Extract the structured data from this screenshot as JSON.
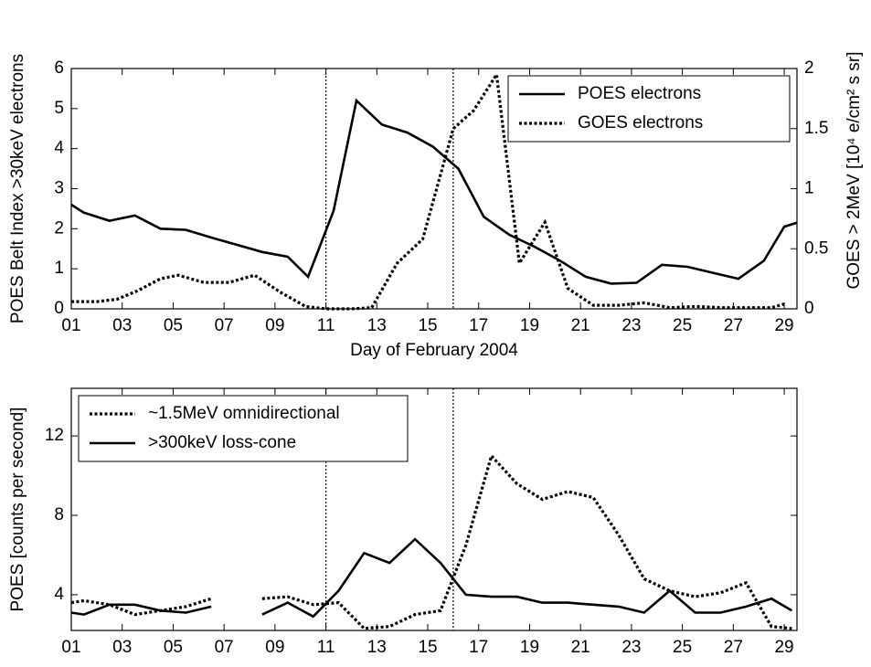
{
  "chart_data": [
    {
      "type": "line",
      "y_label": "POES Belt Index >30keV electrons",
      "y2_label": "GOES > 2MeV [10⁴ e/cm² s sr]",
      "x_label": "Day of February 2004",
      "xlim": [
        1,
        29.5
      ],
      "xticks": [
        {
          "value": 1,
          "label": "01"
        },
        {
          "value": 3,
          "label": "03"
        },
        {
          "value": 5,
          "label": "05"
        },
        {
          "value": 7,
          "label": "07"
        },
        {
          "value": 9,
          "label": "09"
        },
        {
          "value": 11,
          "label": "11"
        },
        {
          "value": 13,
          "label": "13"
        },
        {
          "value": 15,
          "label": "15"
        },
        {
          "value": 17,
          "label": "17"
        },
        {
          "value": 19,
          "label": "19"
        },
        {
          "value": 21,
          "label": "21"
        },
        {
          "value": 23,
          "label": "23"
        },
        {
          "value": 25,
          "label": "25"
        },
        {
          "value": 27,
          "label": "27"
        },
        {
          "value": 29,
          "label": "29"
        }
      ],
      "ylim": [
        0,
        6
      ],
      "yticks": [
        0,
        1,
        2,
        3,
        4,
        5,
        6
      ],
      "y2lim": [
        0,
        2
      ],
      "y2ticks": [
        0,
        0.5,
        1,
        1.5,
        2
      ],
      "vlines": [
        11,
        16
      ],
      "legend": "upper right",
      "series": [
        {
          "name": "POES electrons",
          "color": "#000000",
          "style": "solid",
          "x": [
            1,
            1.5,
            2.5,
            3.5,
            4.5,
            5.5,
            6.5,
            7.5,
            8.5,
            9.5,
            10.3,
            11.3,
            12.2,
            13.2,
            14.2,
            15.2,
            16.2,
            17.2,
            18.2,
            19.2,
            20.2,
            21.2,
            22.2,
            23.2,
            24.2,
            25.2,
            26.2,
            27.2,
            28.2,
            29,
            29.5
          ],
          "values": [
            2.6,
            2.4,
            2.2,
            2.33,
            2.0,
            1.97,
            1.78,
            1.6,
            1.42,
            1.3,
            0.8,
            2.45,
            5.2,
            4.6,
            4.4,
            4.05,
            3.5,
            2.3,
            1.85,
            1.55,
            1.2,
            0.8,
            0.63,
            0.65,
            1.1,
            1.05,
            0.9,
            0.75,
            1.2,
            2.05,
            2.15
          ]
        },
        {
          "name": "GOES electrons",
          "color": "#000000",
          "style": "dotted",
          "axis": "y2",
          "x": [
            1,
            2,
            2.8,
            3.6,
            4.5,
            5.2,
            6.2,
            7.2,
            8.2,
            9.2,
            10.2,
            11,
            12,
            12.8,
            13.8,
            14.8,
            16,
            16.8,
            17.7,
            18.6,
            19.6,
            20.5,
            21.5,
            22.5,
            23.5,
            24.5,
            25.5,
            26.5,
            27.5,
            28.5,
            29
          ],
          "values": [
            0.06,
            0.06,
            0.08,
            0.15,
            0.25,
            0.28,
            0.22,
            0.22,
            0.28,
            0.14,
            0.02,
            0.0,
            0.0,
            0.01,
            0.38,
            0.58,
            1.5,
            1.65,
            1.95,
            0.38,
            0.72,
            0.17,
            0.03,
            0.03,
            0.05,
            0.01,
            0.02,
            0.01,
            0.01,
            0.01,
            0.04
          ]
        }
      ]
    },
    {
      "type": "line",
      "y_label": "POES [counts per second]",
      "xlim": [
        1,
        29.5
      ],
      "xticks": [
        {
          "value": 1,
          "label": "01"
        },
        {
          "value": 3,
          "label": "03"
        },
        {
          "value": 5,
          "label": "05"
        },
        {
          "value": 7,
          "label": "07"
        },
        {
          "value": 9,
          "label": "09"
        },
        {
          "value": 11,
          "label": "11"
        },
        {
          "value": 13,
          "label": "13"
        },
        {
          "value": 15,
          "label": "15"
        },
        {
          "value": 17,
          "label": "17"
        },
        {
          "value": 19,
          "label": "19"
        },
        {
          "value": 21,
          "label": "21"
        },
        {
          "value": 23,
          "label": "23"
        },
        {
          "value": 25,
          "label": "25"
        },
        {
          "value": 27,
          "label": "27"
        },
        {
          "value": 29,
          "label": "29"
        }
      ],
      "ylim": [
        2.2,
        14.4
      ],
      "yticks": [
        4,
        8,
        12
      ],
      "vlines": [
        11,
        16
      ],
      "legend": "upper left",
      "x": [
        1,
        1.5,
        2.5,
        3.5,
        4.5,
        5.5,
        6.5,
        7.5,
        8.5,
        9.5,
        10.5,
        11.5,
        12.5,
        13.5,
        14.5,
        15.5,
        16.5,
        17.5,
        18.5,
        19.5,
        20.5,
        21.5,
        22.5,
        23.5,
        24.5,
        25.5,
        26.5,
        27.5,
        28.5,
        29.3
      ],
      "series": [
        {
          "name": "~1.5MeV omnidirectional",
          "color": "#000000",
          "style": "dotted",
          "values": [
            3.6,
            3.7,
            3.5,
            3.0,
            3.2,
            3.4,
            3.8,
            null,
            3.8,
            3.9,
            3.5,
            3.6,
            2.3,
            2.4,
            3.0,
            3.2,
            6.5,
            11.0,
            9.6,
            8.8,
            9.2,
            8.9,
            7.0,
            4.8,
            4.2,
            3.9,
            4.1,
            4.6,
            2.4,
            2.3
          ]
        },
        {
          "name": ">300keV loss-cone",
          "color": "#000000",
          "style": "solid",
          "values": [
            3.1,
            3.0,
            3.5,
            3.5,
            3.2,
            3.1,
            3.4,
            null,
            3.0,
            3.6,
            2.9,
            4.2,
            6.1,
            5.6,
            6.8,
            5.6,
            4.0,
            3.9,
            3.9,
            3.6,
            3.6,
            3.5,
            3.4,
            3.1,
            4.2,
            3.1,
            3.1,
            3.4,
            3.8,
            3.2
          ]
        }
      ]
    }
  ]
}
